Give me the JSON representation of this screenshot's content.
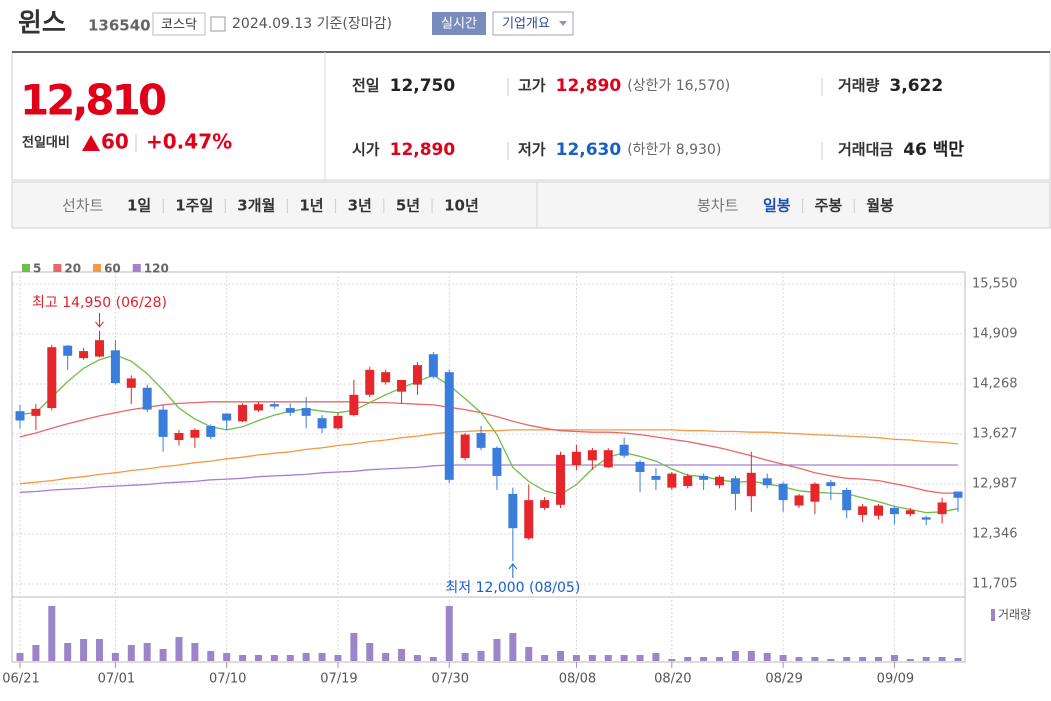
{
  "header": {
    "name": "윈스",
    "code": "136540",
    "market": "코스닥",
    "date": "2024.09.13 기준(장마감)",
    "realtime_button": "실시간",
    "company_button": "기업개요"
  },
  "quote": {
    "price": "12,810",
    "color": "#e0001a",
    "change_label": "전일대비",
    "change": "60",
    "change_pct": "+0.47%",
    "items": [
      {
        "label": "전일",
        "value": "12,750"
      },
      {
        "label": "고가",
        "value": "12,890",
        "color": "#e0001a",
        "extra": "(상한가 16,570)"
      },
      {
        "label": "거래량",
        "value": "3,622"
      },
      {
        "label": "시가",
        "value": "12,890",
        "color": "#e0001a"
      },
      {
        "label": "저가",
        "value": "12,630",
        "color": "#1a5fc8",
        "extra": "(하한가 8,930)"
      },
      {
        "label": "거래대금",
        "value": "46 백만"
      }
    ]
  },
  "tabs": {
    "line": {
      "label": "선차트",
      "periods": [
        "1일",
        "1주일",
        "3개월",
        "1년",
        "3년",
        "5년",
        "10년"
      ]
    },
    "candle": {
      "label": "봉차트",
      "periods": [
        "일봉",
        "주봉",
        "월봉"
      ],
      "active": 0,
      "active_color": "#1a4fb0"
    }
  },
  "chart_data": {
    "type": "candlestick",
    "categories": [
      "06/21",
      null,
      null,
      null,
      null,
      null,
      "07/01",
      null,
      null,
      null,
      null,
      null,
      null,
      "07/10",
      null,
      null,
      null,
      null,
      null,
      null,
      "07/19",
      null,
      null,
      null,
      null,
      null,
      null,
      "07/30",
      null,
      null,
      null,
      null,
      null,
      null,
      null,
      "08/08",
      null,
      null,
      null,
      null,
      null,
      "08/20",
      null,
      null,
      null,
      null,
      null,
      null,
      "08/29",
      null,
      null,
      null,
      null,
      null,
      null,
      "09/09",
      null,
      null,
      null,
      null
    ],
    "open": [
      13920,
      13860,
      13960,
      14760,
      14600,
      14620,
      14700,
      14220,
      14220,
      13940,
      13550,
      13580,
      13730,
      13890,
      13790,
      13930,
      14010,
      13960,
      13960,
      13830,
      13700,
      13870,
      14130,
      14290,
      14170,
      14260,
      14650,
      14420,
      13320,
      13640,
      13450,
      12860,
      12290,
      12680,
      12720,
      13230,
      13290,
      13200,
      13490,
      13270,
      13090,
      12940,
      12960,
      13090,
      12970,
      13060,
      12830,
      13060,
      12990,
      12710,
      12760,
      13010,
      12910,
      12590,
      12580,
      12680,
      12600,
      12560,
      12600,
      12890
    ],
    "high": [
      14000,
      14010,
      14770,
      14770,
      14730,
      14950,
      14830,
      14380,
      14260,
      14000,
      13680,
      13700,
      13750,
      13890,
      14020,
      14040,
      14030,
      14020,
      14100,
      13870,
      13900,
      14320,
      14490,
      14450,
      14320,
      14550,
      14680,
      14450,
      13640,
      13730,
      13470,
      12940,
      12980,
      12820,
      13400,
      13490,
      13450,
      13450,
      13580,
      13290,
      13190,
      13140,
      13120,
      13120,
      13100,
      13090,
      13400,
      13120,
      13010,
      12860,
      13010,
      13040,
      12940,
      12730,
      12730,
      12700,
      12680,
      12580,
      12810,
      12890
    ],
    "low": [
      13700,
      13680,
      13930,
      14450,
      14580,
      14610,
      14260,
      14010,
      13910,
      13400,
      13480,
      13450,
      13560,
      13680,
      13780,
      13910,
      13950,
      13860,
      13700,
      13640,
      13680,
      13850,
      14100,
      14260,
      14010,
      14130,
      14340,
      13000,
      13290,
      13420,
      12910,
      12000,
      12270,
      12650,
      12680,
      13160,
      13170,
      13190,
      13320,
      12880,
      12910,
      12910,
      12930,
      12910,
      12930,
      12650,
      12630,
      12930,
      12630,
      12680,
      12600,
      12780,
      12550,
      12500,
      12530,
      12470,
      12570,
      12460,
      12480,
      12630
    ],
    "close": [
      13800,
      13950,
      14740,
      14630,
      14690,
      14830,
      14280,
      14340,
      13940,
      13590,
      13640,
      13680,
      13590,
      13800,
      14000,
      14010,
      13980,
      13900,
      13860,
      13700,
      13860,
      14130,
      14450,
      14420,
      14320,
      14510,
      14360,
      13040,
      13620,
      13450,
      13090,
      12420,
      12780,
      12780,
      13360,
      13400,
      13420,
      13420,
      13350,
      13140,
      13040,
      13120,
      13090,
      13040,
      13080,
      12860,
      13130,
      12970,
      12780,
      12840,
      12990,
      12960,
      12650,
      12700,
      12710,
      12600,
      12650,
      12530,
      12750,
      12810
    ],
    "up_color": "#e5262b",
    "down_color": "#3b7ddd",
    "series": [
      {
        "name": "5",
        "color": "#6cbf4a",
        "values": [
          13880,
          13900,
          14100,
          14300,
          14470,
          14580,
          14640,
          14560,
          14400,
          14190,
          13960,
          13820,
          13720,
          13680,
          13720,
          13800,
          13870,
          13920,
          13950,
          13920,
          13900,
          13930,
          14030,
          14130,
          14220,
          14300,
          14380,
          14250,
          14080,
          13900,
          13620,
          13200,
          13020,
          12900,
          12850,
          12980,
          13180,
          13330,
          13390,
          13340,
          13280,
          13180,
          13100,
          13080,
          13040,
          13010,
          13020,
          12990,
          12950,
          12900,
          12880,
          12870,
          12860,
          12810,
          12760,
          12700,
          12660,
          12620,
          12630,
          12670
        ]
      },
      {
        "name": "20",
        "color": "#e8686a",
        "values": [
          13590,
          13640,
          13700,
          13760,
          13810,
          13860,
          13900,
          13940,
          13970,
          14000,
          14020,
          14030,
          14040,
          14040,
          14040,
          14040,
          14040,
          14040,
          14040,
          14040,
          14040,
          14040,
          14030,
          14030,
          14020,
          14010,
          14000,
          13970,
          13940,
          13900,
          13850,
          13790,
          13740,
          13700,
          13670,
          13660,
          13650,
          13650,
          13640,
          13620,
          13590,
          13560,
          13530,
          13490,
          13450,
          13400,
          13350,
          13290,
          13240,
          13190,
          13130,
          13090,
          13060,
          13050,
          13030,
          12990,
          12950,
          12900,
          12870,
          12870
        ]
      },
      {
        "name": "60",
        "color": "#f29a45",
        "values": [
          12990,
          13010,
          13030,
          13060,
          13080,
          13110,
          13130,
          13160,
          13180,
          13210,
          13230,
          13260,
          13280,
          13310,
          13330,
          13360,
          13380,
          13400,
          13430,
          13450,
          13480,
          13500,
          13530,
          13550,
          13580,
          13600,
          13630,
          13650,
          13660,
          13670,
          13670,
          13680,
          13680,
          13680,
          13680,
          13680,
          13680,
          13680,
          13680,
          13680,
          13680,
          13680,
          13670,
          13670,
          13660,
          13660,
          13650,
          13650,
          13640,
          13630,
          13620,
          13610,
          13600,
          13590,
          13580,
          13560,
          13550,
          13530,
          13520,
          13500
        ]
      },
      {
        "name": "120",
        "color": "#a57ed6",
        "values": [
          12880,
          12890,
          12910,
          12920,
          12930,
          12950,
          12960,
          12970,
          12980,
          13000,
          13010,
          13020,
          13040,
          13050,
          13060,
          13080,
          13090,
          13100,
          13110,
          13130,
          13140,
          13150,
          13170,
          13180,
          13190,
          13200,
          13220,
          13230,
          13230,
          13230,
          13230,
          13230,
          13230,
          13230,
          13230,
          13230,
          13230,
          13230,
          13230,
          13230,
          13230,
          13230,
          13230,
          13230,
          13230,
          13230,
          13230,
          13230,
          13230,
          13230,
          13230,
          13230,
          13230,
          13230,
          13230,
          13230,
          13230,
          13230,
          13230,
          13230
        ]
      }
    ],
    "volume": {
      "name": "거래량",
      "color": "#9b85c9",
      "values": [
        9600,
        19200,
        66000,
        21600,
        26400,
        26400,
        9600,
        19200,
        21600,
        14400,
        28800,
        21600,
        12000,
        9600,
        7200,
        7200,
        7200,
        7200,
        9600,
        9600,
        7200,
        33600,
        21600,
        9600,
        14400,
        7200,
        4800,
        66000,
        9600,
        12000,
        26400,
        33600,
        16800,
        7200,
        12000,
        7200,
        7200,
        7200,
        7200,
        7200,
        9600,
        2400,
        4800,
        4800,
        4800,
        12000,
        12000,
        9600,
        7200,
        4800,
        4800,
        2400,
        4800,
        4800,
        4800,
        7200,
        2400,
        4800,
        4800,
        3622
      ]
    },
    "ylim": [
      11705,
      15550
    ],
    "yticks": [
      {
        "value": 15550,
        "label": "15,550"
      },
      {
        "value": 14909,
        "label": "14,909"
      },
      {
        "value": 14268,
        "label": "14,268"
      },
      {
        "value": 13627,
        "label": "13,627"
      },
      {
        "value": 12987,
        "label": "12,987"
      },
      {
        "value": 12346,
        "label": "12,346"
      },
      {
        "value": 11705,
        "label": "11,705"
      }
    ],
    "grid": true,
    "annotations": [
      {
        "text": "최고 14,950 (06/28)",
        "color": "#e0202a"
      },
      {
        "text": "최저 12,000 (08/05)",
        "color": "#1a5fc8"
      }
    ]
  }
}
